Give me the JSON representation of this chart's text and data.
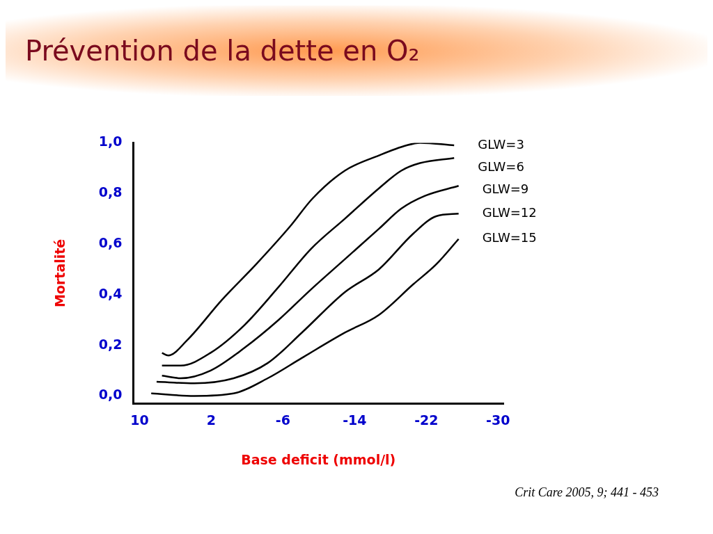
{
  "chart_data": {
    "type": "line",
    "title": "Prévention de la dette en O₂",
    "xlabel": "Base deficit (mmol/l)",
    "ylabel": "Mortalité",
    "xlim": [
      10.7,
      -30.6
    ],
    "xticks": [
      10,
      2,
      -6,
      -14,
      -22,
      -30
    ],
    "ylim": [
      -0.03,
      1.0
    ],
    "yticks": [
      {
        "value": 0,
        "label": "0,0"
      },
      {
        "value": 0.2,
        "label": "0,2"
      },
      {
        "value": 0.4,
        "label": "0,4"
      },
      {
        "value": 0.6,
        "label": "0,6"
      },
      {
        "value": 0.8,
        "label": "0,8"
      },
      {
        "value": 1.0,
        "label": "1,0"
      }
    ],
    "grid": false,
    "legend": false,
    "marker": "none",
    "line_style": "solid",
    "series": [
      {
        "name": "GLW=3",
        "color": "#000000",
        "x": [
          7.5,
          6.8,
          4.7,
          0.8,
          -3.0,
          -6.8,
          -9.3,
          -12.9,
          -16.7,
          -19.8,
          -21.3,
          -25.1
        ],
        "values": [
          0.17,
          0.16,
          0.22,
          0.38,
          0.52,
          0.67,
          0.78,
          0.89,
          0.95,
          0.99,
          1.0,
          0.99
        ]
      },
      {
        "name": "GLW=6",
        "color": "#000000",
        "x": [
          7.5,
          5.4,
          2.1,
          -1.7,
          -5.5,
          -9.1,
          -12.9,
          -16.7,
          -19.2,
          -21.3,
          -25.1
        ],
        "values": [
          0.12,
          0.12,
          0.17,
          0.28,
          0.43,
          0.58,
          0.7,
          0.82,
          0.89,
          0.92,
          0.94
        ]
      },
      {
        "name": "GLW=9",
        "color": "#000000",
        "x": [
          7.5,
          5.4,
          2.1,
          -1.7,
          -5.5,
          -9.1,
          -12.9,
          -16.7,
          -19.2,
          -21.8,
          -25.6
        ],
        "values": [
          0.08,
          0.07,
          0.1,
          0.19,
          0.3,
          0.42,
          0.54,
          0.66,
          0.74,
          0.79,
          0.83
        ]
      },
      {
        "name": "GLW=12",
        "color": "#000000",
        "x": [
          8.1,
          3.9,
          -0.5,
          -4.3,
          -8.1,
          -12.9,
          -16.7,
          -20.5,
          -23.1,
          -25.6
        ],
        "values": [
          0.056,
          0.05,
          0.07,
          0.13,
          0.25,
          0.41,
          0.5,
          0.64,
          0.71,
          0.72
        ]
      },
      {
        "name": "GLW=15",
        "color": "#000000",
        "x": [
          8.7,
          3.9,
          -0.5,
          -4.3,
          -8.1,
          -12.9,
          -16.7,
          -20.5,
          -23.1,
          -25.6
        ],
        "values": [
          0.01,
          0.0,
          0.01,
          0.07,
          0.15,
          0.25,
          0.32,
          0.44,
          0.52,
          0.62
        ]
      }
    ],
    "annotations": [
      "Crit Care 2005, 9; 441 - 453"
    ]
  }
}
